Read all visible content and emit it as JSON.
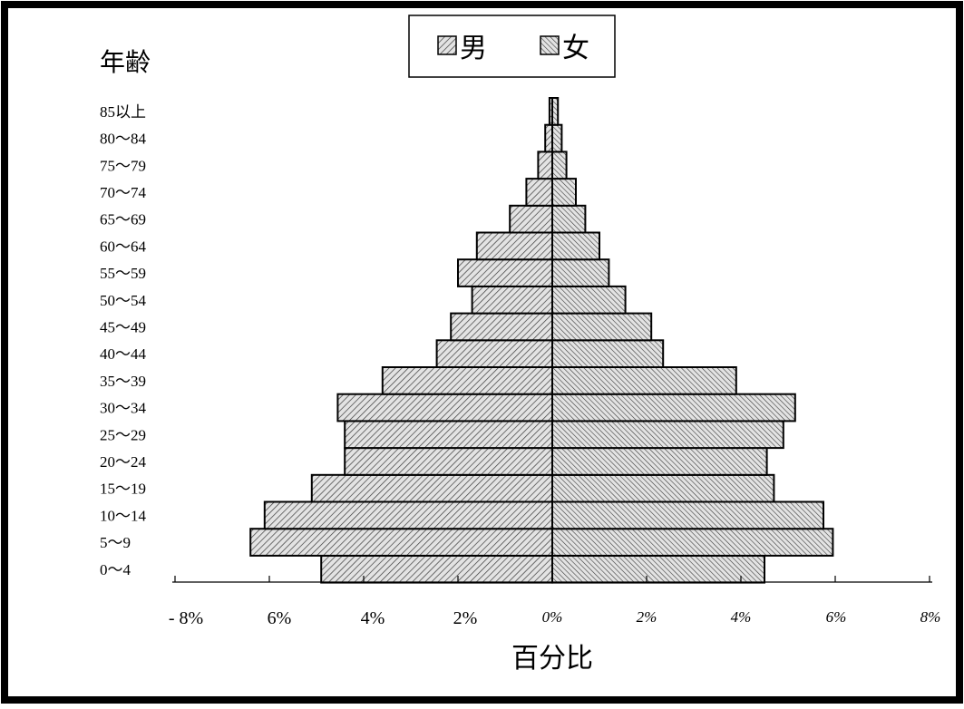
{
  "chart_data": {
    "type": "bar",
    "orientation": "horizontal",
    "ylabel": "年齢",
    "xlabel": "百分比",
    "categories": [
      "0～4",
      "5～9",
      "10～14",
      "15～19",
      "20～24",
      "25～29",
      "30～34",
      "35～39",
      "40～44",
      "45～49",
      "50～54",
      "55～59",
      "60～64",
      "65～69",
      "70～74",
      "75～79",
      "80～84",
      "85以上"
    ],
    "series": [
      {
        "name": "男",
        "side": "left",
        "values": [
          4.9,
          6.4,
          6.1,
          5.1,
          4.4,
          4.4,
          4.55,
          3.6,
          2.45,
          2.15,
          1.7,
          2.0,
          1.6,
          0.9,
          0.55,
          0.3,
          0.15,
          0.06
        ]
      },
      {
        "name": "女",
        "side": "right",
        "values": [
          4.5,
          5.95,
          5.75,
          4.7,
          4.55,
          4.9,
          5.15,
          3.9,
          2.35,
          2.1,
          1.55,
          1.2,
          1.0,
          0.7,
          0.5,
          0.3,
          0.2,
          0.12
        ]
      }
    ],
    "xlim": [
      -8,
      8
    ],
    "x_tick_labels_left": [
      "- 8%",
      "6%",
      "4%",
      "2%"
    ],
    "x_tick_labels_right": [
      "0%",
      "2%",
      "4%",
      "6%",
      "8%"
    ],
    "legend_position": "top-center",
    "grid": false
  },
  "colors": {
    "background": "#ffffff",
    "border": "#000000",
    "bar_fill": "#d9d9d9",
    "hatch": "#3a3a3a"
  }
}
